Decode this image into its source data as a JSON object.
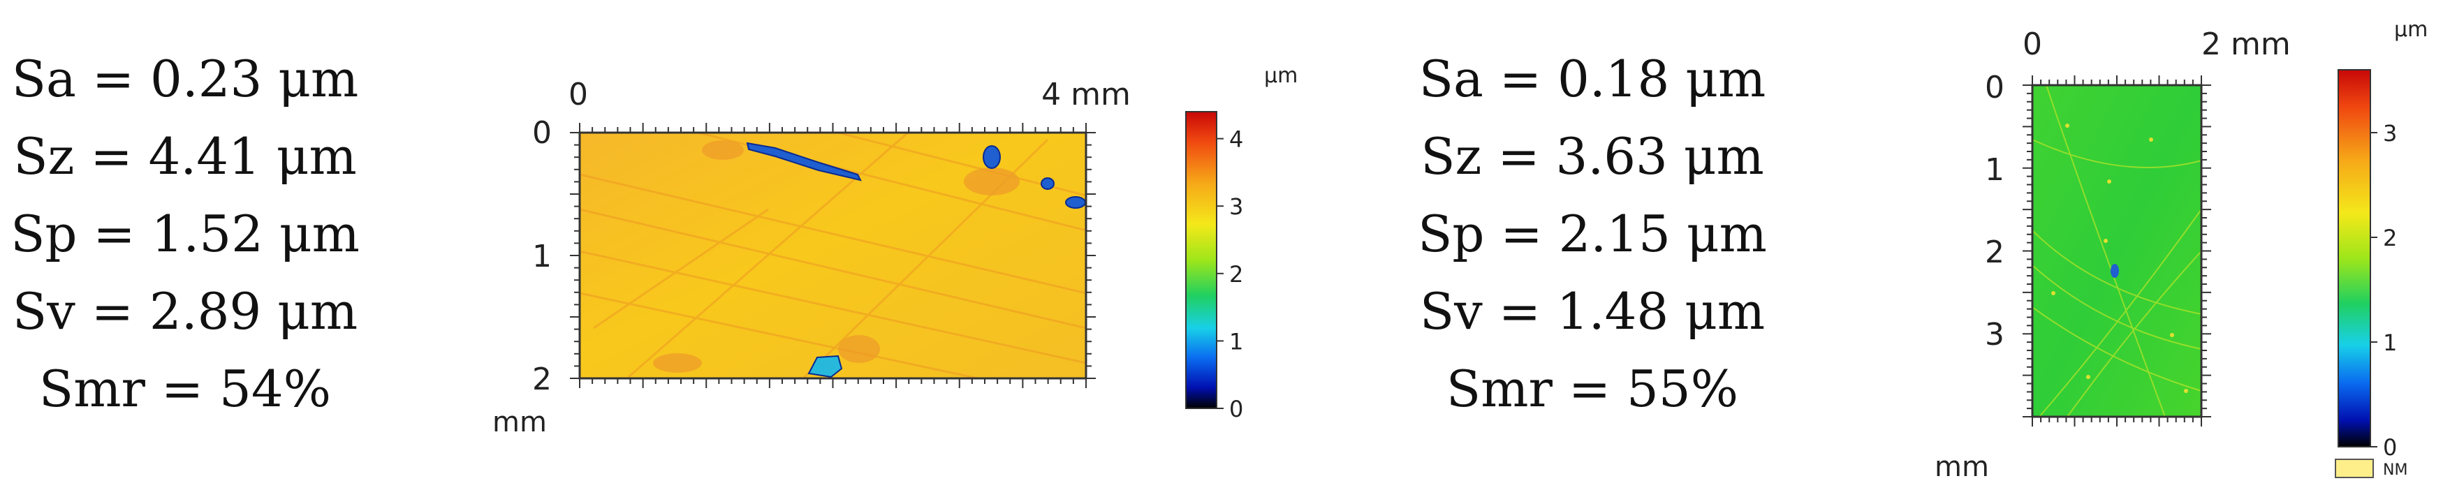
{
  "left_panel": {
    "stats": [
      "Sa = 0.23 μm",
      "Sz = 4.41 μm",
      "Sp = 1.52 μm",
      "Sv = 2.89 μm",
      "Smr = 54%"
    ],
    "x_tick_labels": [
      "0",
      "4 mm"
    ],
    "y_tick_labels": [
      "0",
      "1",
      "2"
    ],
    "y_unit": "mm",
    "colorbar_unit": "μm",
    "colorbar_ticks": [
      "4",
      "3",
      "2",
      "1",
      "0"
    ],
    "colorbar_range": [
      0,
      4.4
    ]
  },
  "right_panel": {
    "stats": [
      "Sa = 0.18 μm",
      "Sz = 3.63 μm",
      "Sp = 2.15 μm",
      "Sv = 1.48 μm",
      "Smr = 55%"
    ],
    "x_tick_labels": [
      "0",
      "2 mm"
    ],
    "y_tick_labels": [
      "0",
      "1",
      "2",
      "3"
    ],
    "y_unit": "mm",
    "colorbar_unit": "μm",
    "colorbar_ticks": [
      "3",
      "2",
      "1",
      "0"
    ],
    "colorbar_range": [
      0,
      3.6
    ],
    "legend_label": "NM",
    "legend_color": "#ffef8a"
  },
  "colors": {
    "left_surface": "#f7c21f",
    "right_surface": "#33cf2f",
    "pit": "#1f5fcf"
  }
}
